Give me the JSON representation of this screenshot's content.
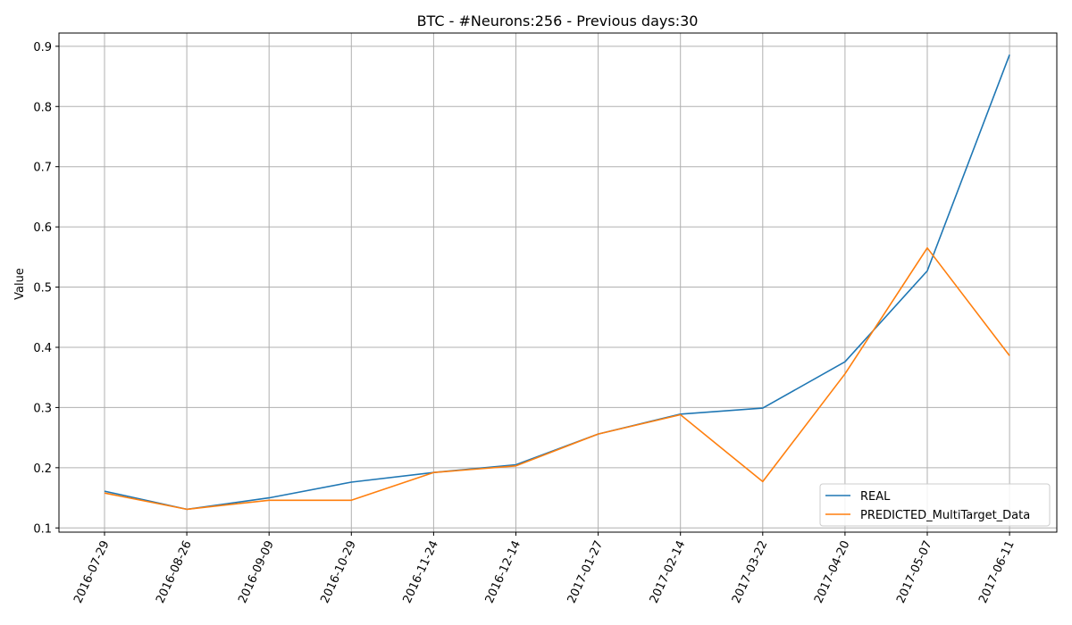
{
  "chart_data": {
    "type": "line",
    "title": "BTC - #Neurons:256 - Previous days:30",
    "xlabel": "",
    "ylabel": "Value",
    "categories": [
      "2016-07-29",
      "2016-08-26",
      "2016-09-09",
      "2016-10-29",
      "2016-11-24",
      "2016-12-14",
      "2017-01-27",
      "2017-02-14",
      "2017-03-22",
      "2017-04-20",
      "2017-05-07",
      "2017-06-11"
    ],
    "yticks": [
      0.1,
      0.2,
      0.3,
      0.4,
      0.5,
      0.6,
      0.7,
      0.8,
      0.9
    ],
    "ylim": [
      0.093,
      0.922
    ],
    "grid": true,
    "legend_position": "bottom-right",
    "series": [
      {
        "name": "REAL",
        "color": "#1f77b4",
        "values": [
          0.161,
          0.131,
          0.15,
          0.176,
          0.192,
          0.205,
          0.256,
          0.289,
          0.299,
          0.376,
          0.527,
          0.886
        ]
      },
      {
        "name": "PREDICTED_MultiTarget_Data",
        "color": "#ff7f0e",
        "values": [
          0.158,
          0.131,
          0.146,
          0.146,
          0.192,
          0.203,
          0.256,
          0.288,
          0.177,
          0.356,
          0.565,
          0.386
        ]
      }
    ]
  }
}
